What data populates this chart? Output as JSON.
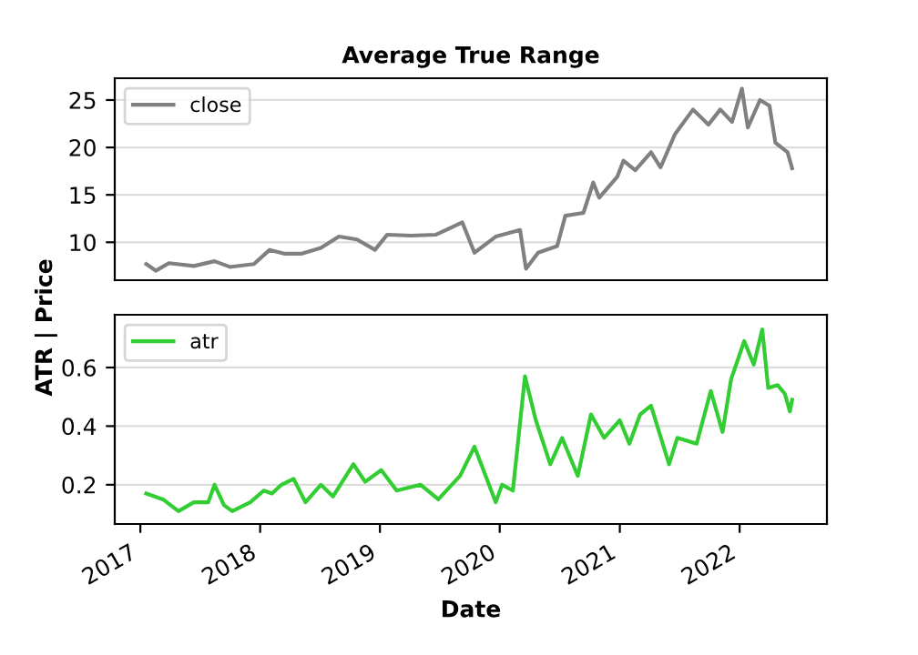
{
  "chart_data": [
    {
      "type": "line",
      "title": "Average True Range",
      "ylabel": "ATR | Price",
      "xlim": [
        "2016-10-15",
        "2022-09-24"
      ],
      "ylim": [
        6.0,
        27.3
      ],
      "yticks": [
        10,
        15,
        20,
        25
      ],
      "grid": "y",
      "legend": "top left",
      "tick_labels": "y",
      "series": [
        {
          "name": "close",
          "color": "#808080",
          "x": [
            "2017-01-19",
            "2017-02-17",
            "2017-03-29",
            "2017-06-13",
            "2017-08-15",
            "2017-10-01",
            "2017-12-13",
            "2018-01-30",
            "2018-03-15",
            "2018-05-08",
            "2018-07-05",
            "2018-08-29",
            "2018-10-23",
            "2018-12-17",
            "2019-01-23",
            "2019-04-06",
            "2019-06-21",
            "2019-09-09",
            "2019-10-16",
            "2019-12-20",
            "2020-03-03",
            "2020-03-21",
            "2020-04-27",
            "2020-06-24",
            "2020-07-19",
            "2020-09-12",
            "2020-10-12",
            "2020-10-30",
            "2020-12-24",
            "2021-01-12",
            "2021-02-17",
            "2021-04-06",
            "2021-05-05",
            "2021-06-18",
            "2021-08-12",
            "2021-09-28",
            "2021-11-03",
            "2021-12-09",
            "2022-01-08",
            "2022-01-26",
            "2022-03-04",
            "2022-04-02",
            "2022-04-20",
            "2022-05-27",
            "2022-06-10"
          ],
          "values": [
            7.7,
            7.0,
            7.8,
            7.5,
            8.0,
            7.4,
            7.7,
            9.2,
            8.8,
            8.8,
            9.4,
            10.6,
            10.3,
            9.2,
            10.8,
            10.7,
            10.8,
            12.1,
            8.9,
            10.6,
            11.3,
            7.2,
            8.9,
            9.6,
            12.8,
            13.1,
            16.3,
            14.7,
            16.9,
            18.6,
            17.6,
            19.5,
            17.9,
            21.4,
            24.0,
            22.4,
            24.0,
            22.7,
            26.2,
            22.1,
            25.0,
            24.4,
            20.5,
            19.5,
            17.8
          ]
        }
      ]
    },
    {
      "type": "line",
      "xlabel": "Date",
      "xlim": [
        "2016-10-15",
        "2022-09-24"
      ],
      "xticks": [
        {
          "value": "2017-01-01",
          "label": "2017"
        },
        {
          "value": "2018-01-01",
          "label": "2018"
        },
        {
          "value": "2019-01-01",
          "label": "2019"
        },
        {
          "value": "2020-01-01",
          "label": "2020"
        },
        {
          "value": "2021-01-01",
          "label": "2021"
        },
        {
          "value": "2022-01-01",
          "label": "2022"
        }
      ],
      "ylim": [
        0.066,
        0.78
      ],
      "yticks": [
        0.2,
        0.4,
        0.6
      ],
      "grid": "y",
      "legend": "top left",
      "series": [
        {
          "name": "atr",
          "color": "#32cd32",
          "x": [
            "2017-01-19",
            "2017-03-11",
            "2017-04-27",
            "2017-06-13",
            "2017-07-27",
            "2017-08-15",
            "2017-09-13",
            "2017-10-08",
            "2017-12-02",
            "2018-01-12",
            "2018-02-06",
            "2018-03-07",
            "2018-04-13",
            "2018-05-19",
            "2018-07-05",
            "2018-08-11",
            "2018-10-12",
            "2018-11-17",
            "2019-01-05",
            "2019-02-21",
            "2019-05-05",
            "2019-06-28",
            "2019-09-02",
            "2019-10-16",
            "2019-12-20",
            "2020-01-08",
            "2020-02-10",
            "2020-03-18",
            "2020-04-20",
            "2020-06-03",
            "2020-07-09",
            "2020-08-26",
            "2020-10-05",
            "2020-11-14",
            "2021-01-01",
            "2021-01-30",
            "2021-03-04",
            "2021-04-06",
            "2021-05-31",
            "2021-06-25",
            "2021-08-23",
            "2021-10-05",
            "2021-11-10",
            "2021-12-06",
            "2022-01-15",
            "2022-02-13",
            "2022-03-11",
            "2022-03-29",
            "2022-04-27",
            "2022-05-19",
            "2022-06-03",
            "2022-06-10"
          ],
          "values": [
            0.17,
            0.15,
            0.11,
            0.14,
            0.14,
            0.2,
            0.13,
            0.11,
            0.14,
            0.18,
            0.17,
            0.2,
            0.22,
            0.14,
            0.2,
            0.16,
            0.27,
            0.21,
            0.25,
            0.18,
            0.2,
            0.15,
            0.23,
            0.33,
            0.14,
            0.2,
            0.18,
            0.57,
            0.42,
            0.27,
            0.36,
            0.23,
            0.44,
            0.36,
            0.42,
            0.34,
            0.44,
            0.47,
            0.27,
            0.36,
            0.34,
            0.52,
            0.38,
            0.56,
            0.69,
            0.61,
            0.73,
            0.53,
            0.54,
            0.51,
            0.45,
            0.49
          ]
        }
      ]
    }
  ]
}
